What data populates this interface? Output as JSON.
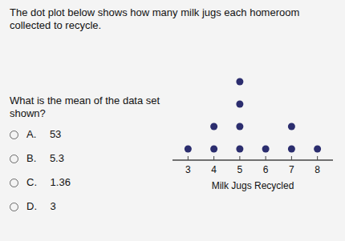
{
  "chart_data": {
    "type": "dot",
    "title": "The dot plot below shows how many milk jugs each homeroom collected to recycle.",
    "xlabel": "Milk Jugs Recycled",
    "x": [
      3,
      4,
      5,
      6,
      7,
      8
    ],
    "values": [
      1,
      2,
      4,
      1,
      2,
      1
    ],
    "color": "#2b2d6e",
    "xlim": [
      2.4,
      8.6
    ],
    "xticks": [
      3,
      4,
      5,
      6,
      7,
      8
    ],
    "ylim": [
      0,
      5
    ],
    "tick_labels": "x",
    "annotations": [
      "What is the mean of the data set shown?",
      "A.  53",
      "B.  5.3",
      "C.  1.36",
      "D.  3"
    ]
  }
}
